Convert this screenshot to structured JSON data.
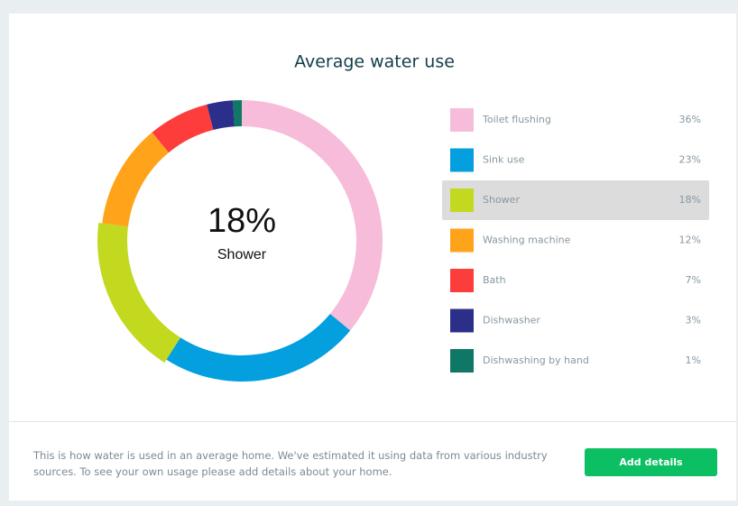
{
  "chart_data": {
    "type": "donut",
    "title": "Average water use",
    "categories": [
      "Toilet flushing",
      "Sink use",
      "Shower",
      "Washing machine",
      "Bath",
      "Dishwasher",
      "Dishwashing by hand"
    ],
    "values": [
      36,
      23,
      18,
      12,
      7,
      3,
      1
    ],
    "value_labels": [
      "36%",
      "23%",
      "18%",
      "12%",
      "7%",
      "3%",
      "1%"
    ],
    "colors": [
      "#f7bcd9",
      "#039fdf",
      "#c2d920",
      "#ffa31a",
      "#fd3c3c",
      "#2c2f8a",
      "#0f7766"
    ],
    "highlight": 2
  },
  "footer": {
    "lines": [
      "This is how water is used in an average home. We've estimated it using data from various industry",
      "sources. To see your own usage please add details about your home."
    ],
    "button": "Add details"
  }
}
